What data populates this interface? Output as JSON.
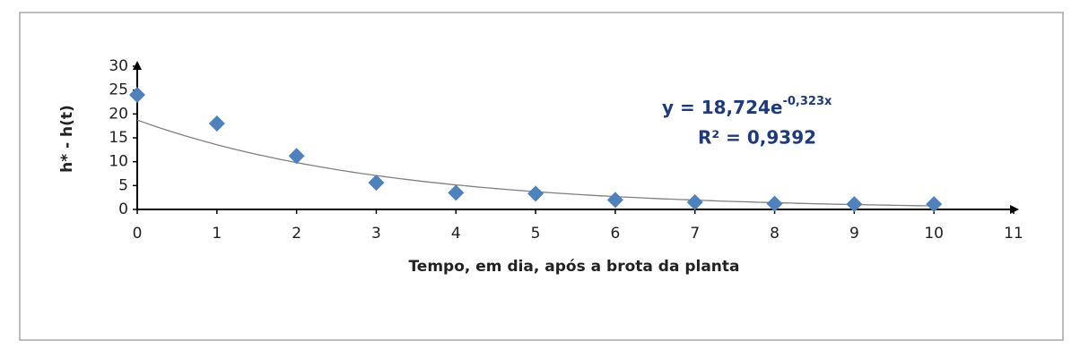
{
  "chart_data": {
    "type": "scatter",
    "x_label": "Tempo, em dia, após a brota da planta",
    "y_label": "h* - h(t)",
    "x": [
      0,
      1,
      2,
      3,
      4,
      5,
      6,
      7,
      8,
      9,
      10
    ],
    "series": [
      {
        "color": "#4f81bd",
        "values": [
          24,
          18,
          11.2,
          5.6,
          3.5,
          3.3,
          2,
          1.5,
          1.2,
          1.1,
          1.1
        ]
      }
    ],
    "xlim": [
      0,
      11
    ],
    "xticks": [
      0,
      1,
      2,
      3,
      4,
      5,
      6,
      7,
      8,
      9,
      10,
      11
    ],
    "ylim": [
      0,
      30
    ],
    "yticks": [
      0,
      5,
      10,
      15,
      20,
      25,
      30
    ],
    "grid": false,
    "trendline": {
      "a": 18.724,
      "b": -0.323,
      "color": "#808080",
      "equation": "y = 18,724e",
      "exponent": "-0,323x",
      "r2_label": "R² = 0,9392"
    }
  }
}
